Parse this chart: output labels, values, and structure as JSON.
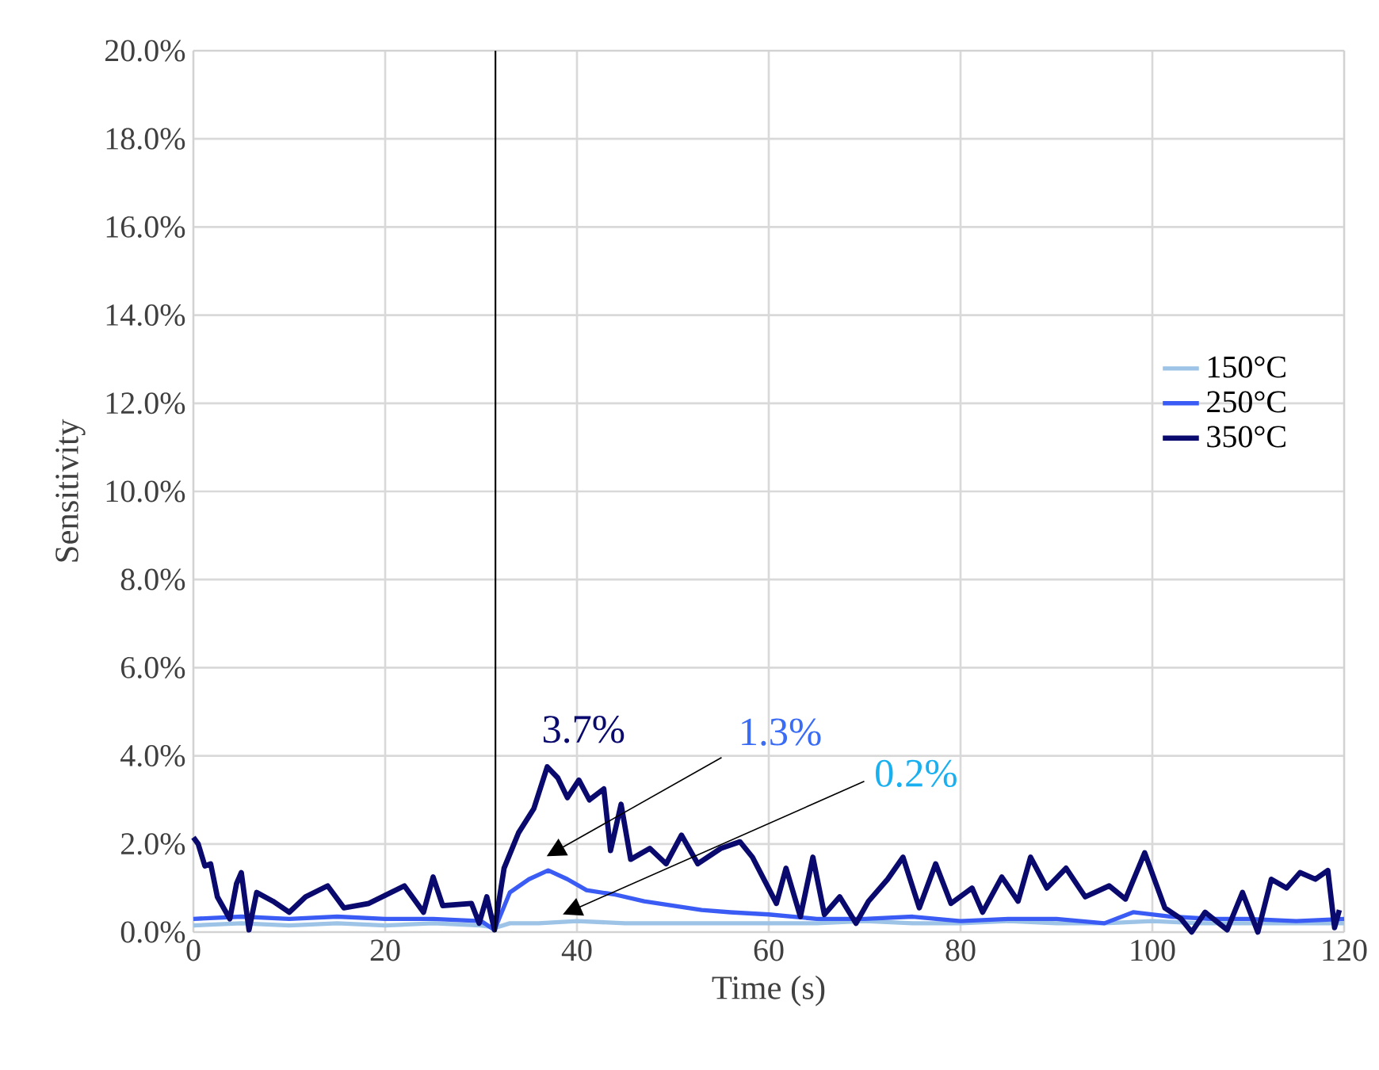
{
  "chart_data": {
    "type": "line",
    "xlabel": "Time (s)",
    "ylabel": "Sensitivity",
    "xlim": [
      0,
      120
    ],
    "xticks": [
      0,
      20,
      40,
      60,
      80,
      100,
      120
    ],
    "ylim": [
      0,
      20
    ],
    "yticks": [
      {
        "value": 0,
        "label": "0.0%"
      },
      {
        "value": 2,
        "label": "2.0%"
      },
      {
        "value": 4,
        "label": "4.0%"
      },
      {
        "value": 6,
        "label": "6.0%"
      },
      {
        "value": 8,
        "label": "8.0%"
      },
      {
        "value": 10,
        "label": "10.0%"
      },
      {
        "value": 12,
        "label": "12.0%"
      },
      {
        "value": 14,
        "label": "14.0%"
      },
      {
        "value": 16,
        "label": "16.0%"
      },
      {
        "value": 18,
        "label": "18.0%"
      },
      {
        "value": 20,
        "label": "20.0%"
      }
    ],
    "grid": true,
    "legend": "right",
    "marker": "none",
    "line_style": "solid",
    "series": [
      {
        "name": "150°C",
        "color": "#9dc3e6",
        "x": [
          0,
          5,
          10,
          15,
          20,
          25,
          30,
          31.5,
          33,
          36,
          40,
          45,
          50,
          55,
          60,
          65,
          70,
          75,
          80,
          85,
          90,
          95,
          100,
          105,
          110,
          115,
          120
        ],
        "values": [
          0.15,
          0.2,
          0.15,
          0.2,
          0.15,
          0.2,
          0.15,
          0.1,
          0.2,
          0.2,
          0.25,
          0.2,
          0.2,
          0.2,
          0.2,
          0.2,
          0.25,
          0.2,
          0.2,
          0.25,
          0.2,
          0.2,
          0.25,
          0.2,
          0.2,
          0.2,
          0.2
        ]
      },
      {
        "name": "250°C",
        "color": "#3a5cf5",
        "x": [
          0,
          5,
          10,
          15,
          20,
          25,
          30,
          31.4,
          33,
          35,
          37,
          39,
          41,
          44,
          47,
          50,
          53,
          56,
          60,
          65,
          70,
          75,
          80,
          85,
          90,
          95,
          98,
          102,
          106,
          110,
          115,
          120
        ],
        "values": [
          0.3,
          0.35,
          0.3,
          0.35,
          0.3,
          0.3,
          0.25,
          0.05,
          0.9,
          1.2,
          1.4,
          1.2,
          0.95,
          0.85,
          0.7,
          0.6,
          0.5,
          0.45,
          0.4,
          0.3,
          0.3,
          0.35,
          0.25,
          0.3,
          0.3,
          0.2,
          0.45,
          0.35,
          0.3,
          0.3,
          0.25,
          0.3
        ]
      },
      {
        "name": "350°C",
        "color": "#0a0a6e",
        "x": [
          0,
          0.5,
          1.2,
          1.8,
          2.5,
          3.8,
          4.5,
          5,
          5.8,
          6.6,
          8.3,
          10,
          11.7,
          14,
          15.7,
          18.3,
          22,
          24,
          25,
          26,
          29,
          29.8,
          30.6,
          31.4,
          32.4,
          33.9,
          35.5,
          36.9,
          38,
          39,
          40.2,
          41.3,
          42.8,
          43.5,
          44.6,
          45.6,
          47.6,
          49.3,
          50.9,
          52.6,
          55,
          57,
          58.3,
          60.8,
          61.8,
          63.3,
          64.6,
          65.8,
          67.4,
          69.1,
          70.4,
          72.4,
          74,
          75.7,
          77.4,
          79,
          81.2,
          82.3,
          84.3,
          86,
          87.3,
          89,
          91,
          93,
          95.5,
          97.2,
          99.2,
          101.3,
          103,
          104.1,
          105.5,
          107.8,
          109.4,
          111,
          112.4,
          114,
          115.4,
          117,
          118.3,
          119,
          119.5
        ],
        "values": [
          2.15,
          2.0,
          1.5,
          1.55,
          0.8,
          0.3,
          1.1,
          1.35,
          0.05,
          0.9,
          0.7,
          0.45,
          0.8,
          1.05,
          0.55,
          0.65,
          1.05,
          0.45,
          1.25,
          0.6,
          0.65,
          0.2,
          0.8,
          0.05,
          1.45,
          2.25,
          2.8,
          3.75,
          3.5,
          3.05,
          3.45,
          3.0,
          3.25,
          1.85,
          2.9,
          1.65,
          1.9,
          1.55,
          2.2,
          1.55,
          1.9,
          2.05,
          1.7,
          0.65,
          1.45,
          0.35,
          1.7,
          0.4,
          0.8,
          0.2,
          0.7,
          1.2,
          1.7,
          0.55,
          1.55,
          0.65,
          1.0,
          0.45,
          1.25,
          0.7,
          1.7,
          1.0,
          1.45,
          0.8,
          1.05,
          0.75,
          1.8,
          0.55,
          0.3,
          0,
          0.45,
          0.05,
          0.9,
          0,
          1.2,
          1.0,
          1.35,
          1.2,
          1.4,
          0.1,
          0.5
        ]
      }
    ],
    "ref_lines": [
      {
        "axis": "x",
        "value": 31.5,
        "color": "#000000"
      }
    ],
    "annotations": [
      "3.7%",
      "1.3%",
      "0.2%"
    ]
  }
}
